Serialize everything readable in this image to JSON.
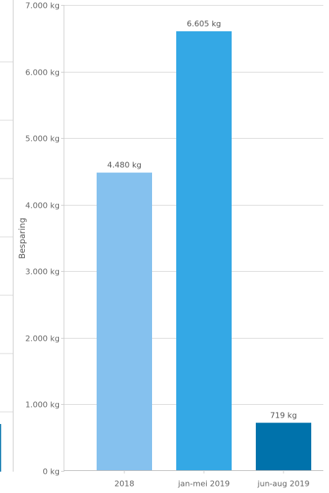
{
  "colors": {
    "bar_2018": "#85c1ee",
    "bar_jan_mei_2019": "#34a8e5",
    "bar_jun_aug_2019": "#0072ab",
    "gridline": "#d9d9d9",
    "axis_line": "#cccccc",
    "left_panel_bar": "#0072ab"
  },
  "chart_data": {
    "type": "bar",
    "title": "",
    "xlabel": "",
    "ylabel": "Besparing",
    "ylim": [
      0,
      7000
    ],
    "grid": true,
    "legend": "none",
    "unit": "kg",
    "categories": [
      "2018",
      "jan-mei 2019",
      "jun-aug 2019"
    ],
    "values": [
      4480,
      6605,
      719
    ],
    "value_labels": [
      "4.480 kg",
      "6.605 kg",
      "719 kg"
    ],
    "y_ticks": [
      0,
      1000,
      2000,
      3000,
      4000,
      5000,
      6000,
      7000
    ],
    "y_tick_labels": [
      "0 kg",
      "1.000 kg",
      "2.000 kg",
      "3.000 kg",
      "4.000 kg",
      "5.000 kg",
      "6.000 kg",
      "7.000 kg"
    ]
  }
}
